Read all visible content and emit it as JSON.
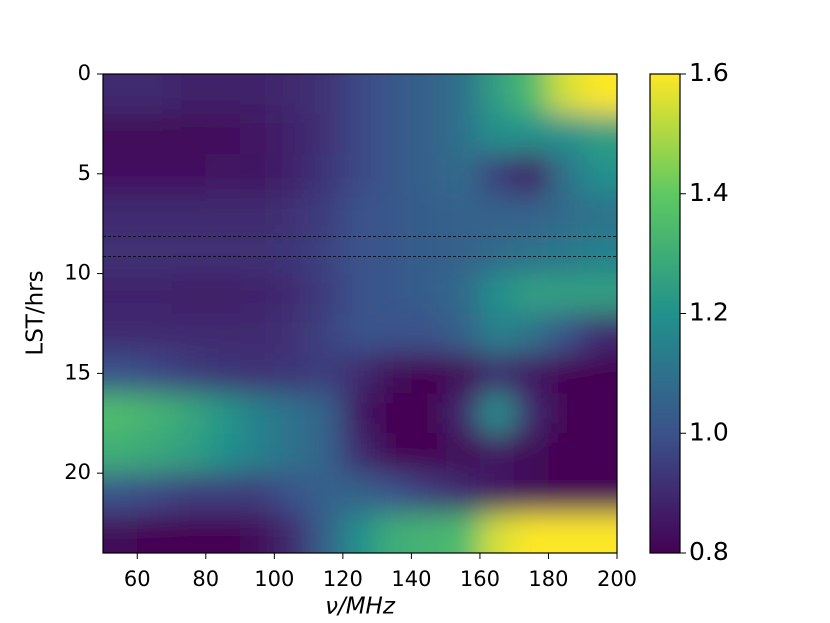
{
  "chart_data": {
    "type": "heatmap",
    "xlabel": "ν/MHz",
    "ylabel": "LST/hrs",
    "x": [
      55,
      65,
      75,
      85,
      95,
      105,
      115,
      125,
      135,
      145,
      155,
      165,
      175,
      185,
      195
    ],
    "y": [
      1,
      3,
      5,
      7,
      9,
      11,
      13,
      15,
      17,
      19,
      21,
      23
    ],
    "values": [
      [
        0.9,
        0.9,
        0.88,
        0.88,
        0.88,
        0.9,
        0.92,
        0.98,
        1.02,
        1.05,
        1.1,
        1.25,
        1.35,
        1.55,
        1.6
      ],
      [
        0.82,
        0.82,
        0.82,
        0.83,
        0.85,
        0.88,
        0.92,
        0.98,
        1.02,
        1.05,
        1.1,
        1.2,
        1.2,
        1.2,
        1.25
      ],
      [
        0.84,
        0.84,
        0.84,
        0.85,
        0.86,
        0.88,
        0.93,
        0.98,
        1.02,
        1.05,
        1.08,
        0.95,
        0.85,
        1.1,
        1.2
      ],
      [
        0.9,
        0.9,
        0.9,
        0.9,
        0.9,
        0.92,
        0.95,
        1.0,
        1.02,
        1.04,
        1.05,
        1.05,
        1.05,
        1.08,
        1.1
      ],
      [
        0.92,
        0.92,
        0.92,
        0.92,
        0.92,
        0.93,
        0.96,
        1.0,
        1.02,
        1.04,
        1.05,
        1.08,
        1.1,
        1.12,
        1.15
      ],
      [
        0.88,
        0.88,
        0.87,
        0.87,
        0.88,
        0.9,
        0.95,
        1.0,
        1.02,
        1.04,
        1.08,
        1.2,
        1.25,
        1.25,
        1.25
      ],
      [
        0.9,
        0.9,
        0.9,
        0.9,
        0.9,
        0.92,
        0.96,
        1.0,
        1.0,
        1.0,
        1.05,
        1.15,
        1.1,
        1.0,
        0.9
      ],
      [
        1.0,
        0.98,
        0.95,
        0.93,
        0.92,
        0.93,
        0.95,
        0.9,
        0.82,
        0.8,
        0.82,
        0.9,
        0.85,
        0.8,
        0.8
      ],
      [
        1.35,
        1.32,
        1.28,
        1.22,
        1.15,
        1.1,
        1.05,
        0.85,
        0.8,
        0.8,
        0.9,
        1.2,
        0.9,
        0.8,
        0.8
      ],
      [
        1.3,
        1.28,
        1.25,
        1.2,
        1.15,
        1.1,
        1.05,
        0.9,
        0.8,
        0.8,
        0.82,
        0.85,
        0.82,
        0.8,
        0.8
      ],
      [
        1.0,
        0.98,
        0.95,
        0.95,
        0.95,
        1.0,
        1.05,
        1.05,
        1.0,
        0.95,
        0.9,
        0.85,
        0.82,
        0.8,
        0.8
      ],
      [
        0.82,
        0.8,
        0.8,
        0.8,
        0.82,
        0.9,
        1.05,
        1.2,
        1.3,
        1.32,
        1.35,
        1.55,
        1.6,
        1.6,
        1.6
      ]
    ],
    "xlim": [
      50,
      200
    ],
    "xticks": [
      60,
      80,
      100,
      120,
      140,
      160,
      180,
      200
    ],
    "ylim": [
      24,
      0
    ],
    "yticks": [
      0,
      5,
      10,
      15,
      20
    ],
    "hlines": [
      8.15,
      9.15
    ],
    "colormap": "viridis",
    "clim": [
      0.8,
      1.6
    ],
    "cticks": [
      0.8,
      {
        "value": 1,
        "label": "1.0"
      },
      1.2,
      1.4,
      1.6
    ]
  }
}
